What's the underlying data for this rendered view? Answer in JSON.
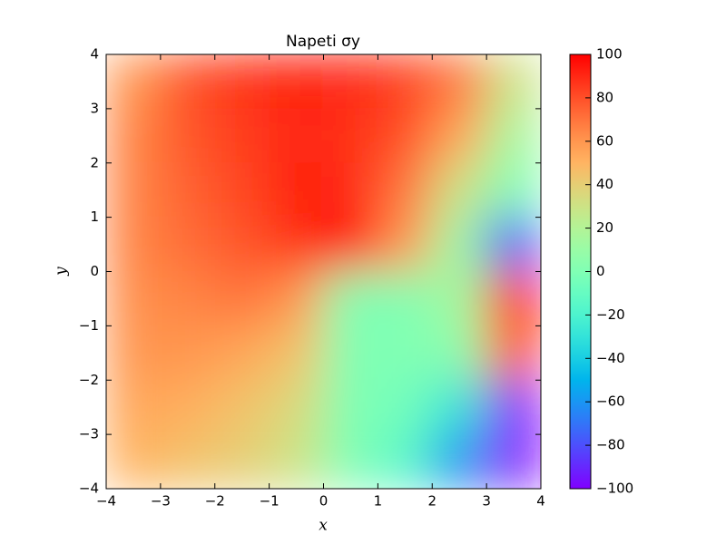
{
  "chart_data": {
    "type": "heatmap",
    "title": "Napeti σy",
    "x_label": "x",
    "y_label": "y",
    "xlim": [
      -4,
      4
    ],
    "ylim": [
      -4,
      4
    ],
    "xticks": [
      {
        "value": -4,
        "label": "−4"
      },
      {
        "value": -3,
        "label": "−3"
      },
      {
        "value": -2,
        "label": "−2"
      },
      {
        "value": -1,
        "label": "−1"
      },
      0,
      1,
      2,
      3,
      4
    ],
    "yticks": [
      {
        "value": -4,
        "label": "−4"
      },
      {
        "value": -3,
        "label": "−3"
      },
      {
        "value": -2,
        "label": "−2"
      },
      {
        "value": -1,
        "label": "−1"
      },
      0,
      1,
      2,
      3,
      4
    ],
    "x": [
      -3.5,
      -2.5,
      -1.5,
      -0.5,
      0.5,
      1.5,
      2.5,
      3.5
    ],
    "y": [
      3.5,
      2.5,
      1.5,
      0.5,
      -0.5,
      -1.5,
      -2.5,
      -3.5
    ],
    "z": [
      [
        60,
        80,
        88,
        92,
        90,
        85,
        70,
        30
      ],
      [
        65,
        78,
        85,
        90,
        88,
        80,
        55,
        15
      ],
      [
        65,
        75,
        82,
        92,
        90,
        70,
        30,
        0
      ],
      [
        65,
        72,
        78,
        88,
        100,
        60,
        10,
        -80
      ],
      [
        62,
        65,
        70,
        60,
        0,
        0,
        15,
        100
      ],
      [
        60,
        60,
        55,
        45,
        0,
        0,
        5,
        80
      ],
      [
        55,
        52,
        45,
        35,
        0,
        -5,
        -30,
        -100
      ],
      [
        50,
        45,
        40,
        30,
        0,
        -15,
        -60,
        -100
      ]
    ],
    "colormap": "rainbow",
    "clim": [
      -100,
      100
    ],
    "cticks": [
      {
        "value": -100,
        "label": "−100"
      },
      {
        "value": -80,
        "label": "−80"
      },
      {
        "value": -60,
        "label": "−60"
      },
      {
        "value": -40,
        "label": "−40"
      },
      {
        "value": -20,
        "label": "−20"
      },
      0,
      20,
      40,
      60,
      80,
      100
    ]
  }
}
